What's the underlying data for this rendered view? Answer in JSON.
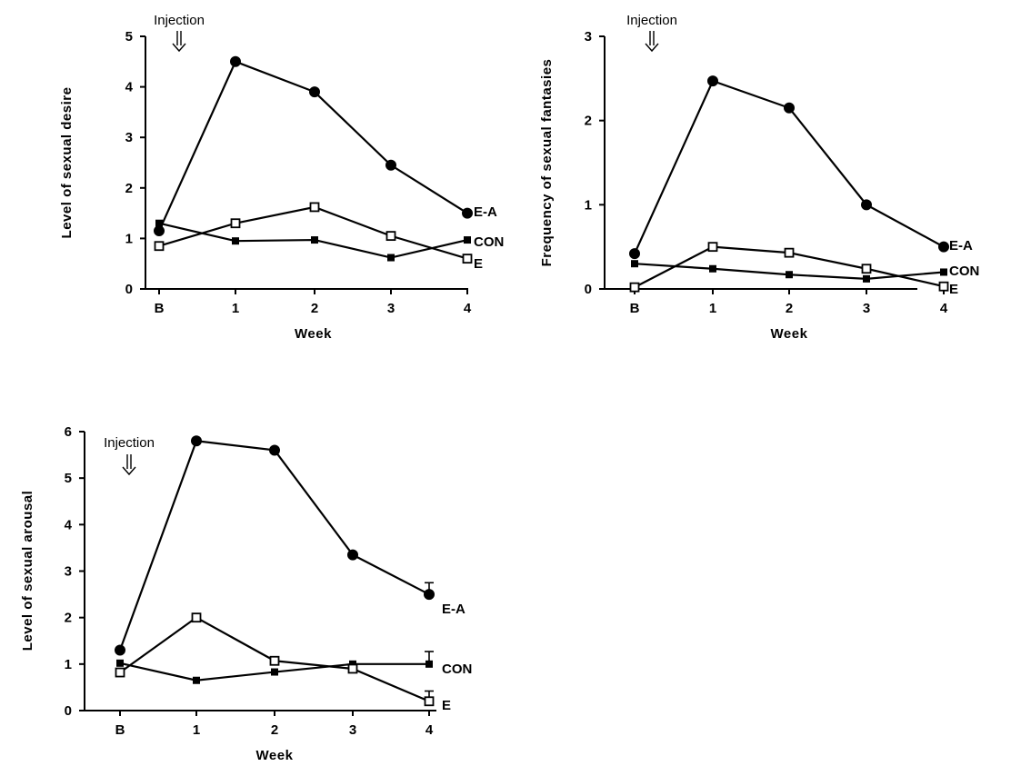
{
  "chart_data": [
    {
      "type": "line",
      "categories": [
        "B",
        "1",
        "2",
        "3",
        "4"
      ],
      "xlabel": "Week",
      "ylabel": "Level of sexual desire",
      "ylim": [
        0,
        5
      ],
      "yticks": [
        0,
        1,
        2,
        3,
        4,
        5
      ],
      "annotation": "Injection",
      "series": [
        {
          "name": "E-A",
          "marker": "filled-circle",
          "values": [
            1.15,
            4.5,
            3.9,
            2.45,
            1.5
          ]
        },
        {
          "name": "E",
          "marker": "open-square",
          "values": [
            0.85,
            1.3,
            1.62,
            1.05,
            0.6
          ]
        },
        {
          "name": "CON",
          "marker": "filled-square",
          "values": [
            1.3,
            0.95,
            0.97,
            0.62,
            0.97
          ]
        }
      ],
      "series_label_order": [
        "E-A",
        "CON",
        "E"
      ]
    },
    {
      "type": "line",
      "categories": [
        "B",
        "1",
        "2",
        "3",
        "4"
      ],
      "xlabel": "Week",
      "ylabel": "Frequency of sexual fantasies",
      "ylim": [
        0,
        3
      ],
      "yticks": [
        0,
        1,
        2,
        3
      ],
      "annotation": "Injection",
      "series": [
        {
          "name": "E-A",
          "marker": "filled-circle",
          "values": [
            0.42,
            2.47,
            2.15,
            1.0,
            0.5
          ]
        },
        {
          "name": "E",
          "marker": "open-square",
          "values": [
            0.02,
            0.5,
            0.43,
            0.24,
            0.03
          ]
        },
        {
          "name": "CON",
          "marker": "filled-square",
          "values": [
            0.3,
            0.24,
            0.17,
            0.12,
            0.2
          ]
        }
      ],
      "series_label_order": [
        "E-A",
        "CON",
        "E"
      ]
    },
    {
      "type": "line",
      "categories": [
        "B",
        "1",
        "2",
        "3",
        "4"
      ],
      "xlabel": "Week",
      "ylabel": "Level of sexual arousal",
      "ylim": [
        0,
        6
      ],
      "yticks": [
        0,
        1,
        2,
        3,
        4,
        5,
        6
      ],
      "annotation": "Injection",
      "series": [
        {
          "name": "E-A",
          "marker": "filled-circle",
          "values": [
            1.3,
            5.8,
            5.6,
            3.35,
            2.5
          ],
          "error_last": 0.25
        },
        {
          "name": "E",
          "marker": "open-square",
          "values": [
            0.82,
            2.0,
            1.07,
            0.9,
            0.2
          ],
          "error_last": 0.22
        },
        {
          "name": "CON",
          "marker": "filled-square",
          "values": [
            1.02,
            0.65,
            0.83,
            1.0,
            1.0
          ],
          "error_last": 0.27
        }
      ],
      "series_label_order": [
        "E-A",
        "CON",
        "E"
      ]
    }
  ]
}
